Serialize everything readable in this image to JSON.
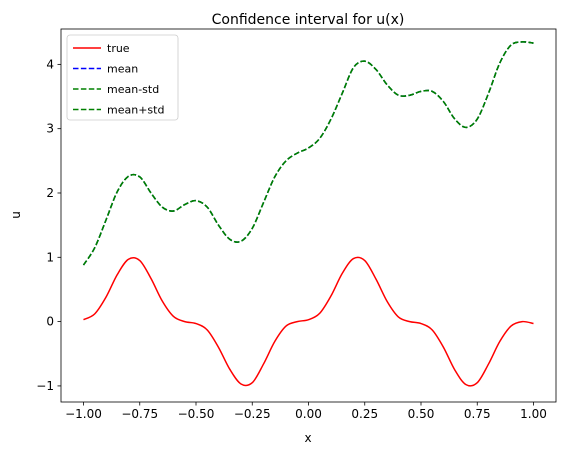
{
  "chart_data": {
    "type": "line",
    "title": "Confidence interval for u(x)",
    "xlabel": "x",
    "ylabel": "u",
    "xlim": [
      -1.1,
      1.1
    ],
    "ylim": [
      -1.25,
      4.55
    ],
    "xticks": [
      -1.0,
      -0.75,
      -0.5,
      -0.25,
      0.0,
      0.25,
      0.5,
      0.75,
      1.0
    ],
    "xtick_labels": [
      "−1.00",
      "−0.75",
      "−0.50",
      "−0.25",
      "0.00",
      "0.25",
      "0.50",
      "0.75",
      "1.00"
    ],
    "yticks": [
      -1,
      0,
      1,
      2,
      3,
      4
    ],
    "ytick_labels": [
      "−1",
      "0",
      "1",
      "2",
      "3",
      "4"
    ],
    "grid": false,
    "legend_position": "top-left",
    "series": [
      {
        "name": "true",
        "color": "#ff0000",
        "dash": "solid",
        "x": [
          -1.0,
          -0.95,
          -0.9,
          -0.85,
          -0.8,
          -0.75,
          -0.7,
          -0.65,
          -0.6,
          -0.55,
          -0.5,
          -0.45,
          -0.4,
          -0.35,
          -0.3,
          -0.25,
          -0.2,
          -0.15,
          -0.1,
          -0.05,
          0.0,
          0.05,
          0.1,
          0.15,
          0.2,
          0.25,
          0.3,
          0.35,
          0.4,
          0.45,
          0.5,
          0.55,
          0.6,
          0.65,
          0.7,
          0.75,
          0.8,
          0.85,
          0.9,
          0.95,
          1.0
        ],
        "y": [
          0.03,
          0.12,
          0.38,
          0.73,
          0.97,
          0.95,
          0.67,
          0.32,
          0.08,
          0.0,
          -0.03,
          -0.13,
          -0.4,
          -0.74,
          -0.97,
          -0.95,
          -0.66,
          -0.31,
          -0.07,
          0.0,
          0.03,
          0.13,
          0.4,
          0.75,
          0.98,
          0.95,
          0.66,
          0.31,
          0.07,
          0.0,
          -0.03,
          -0.13,
          -0.4,
          -0.75,
          -0.98,
          -0.95,
          -0.66,
          -0.31,
          -0.07,
          0.0,
          -0.03
        ]
      },
      {
        "name": "mean",
        "color": "#0000ff",
        "dash": "dashed",
        "x": [
          -1.0,
          -0.95,
          -0.9,
          -0.85,
          -0.8,
          -0.75,
          -0.7,
          -0.65,
          -0.6,
          -0.55,
          -0.5,
          -0.45,
          -0.4,
          -0.35,
          -0.3,
          -0.25,
          -0.2,
          -0.15,
          -0.1,
          -0.05,
          0.0,
          0.05,
          0.1,
          0.15,
          0.2,
          0.25,
          0.3,
          0.35,
          0.4,
          0.45,
          0.5,
          0.55,
          0.6,
          0.65,
          0.7,
          0.75,
          0.8,
          0.85,
          0.9,
          0.95,
          1.0
        ],
        "y": [
          0.88,
          1.15,
          1.58,
          2.02,
          2.26,
          2.25,
          2.0,
          1.78,
          1.72,
          1.82,
          1.88,
          1.78,
          1.5,
          1.28,
          1.25,
          1.45,
          1.85,
          2.25,
          2.5,
          2.62,
          2.7,
          2.85,
          3.15,
          3.55,
          3.95,
          4.05,
          3.92,
          3.68,
          3.52,
          3.52,
          3.58,
          3.58,
          3.42,
          3.15,
          3.02,
          3.15,
          3.55,
          4.02,
          4.3,
          4.35,
          4.33
        ]
      },
      {
        "name": "mean-std",
        "color": "#008000",
        "dash": "dashed",
        "x": [
          -1.0,
          -0.95,
          -0.9,
          -0.85,
          -0.8,
          -0.75,
          -0.7,
          -0.65,
          -0.6,
          -0.55,
          -0.5,
          -0.45,
          -0.4,
          -0.35,
          -0.3,
          -0.25,
          -0.2,
          -0.15,
          -0.1,
          -0.05,
          0.0,
          0.05,
          0.1,
          0.15,
          0.2,
          0.25,
          0.3,
          0.35,
          0.4,
          0.45,
          0.5,
          0.55,
          0.6,
          0.65,
          0.7,
          0.75,
          0.8,
          0.85,
          0.9,
          0.95,
          1.0
        ],
        "y": [
          0.88,
          1.15,
          1.58,
          2.02,
          2.26,
          2.25,
          2.0,
          1.78,
          1.72,
          1.82,
          1.88,
          1.78,
          1.5,
          1.28,
          1.25,
          1.45,
          1.85,
          2.25,
          2.5,
          2.62,
          2.7,
          2.85,
          3.15,
          3.55,
          3.95,
          4.05,
          3.92,
          3.68,
          3.52,
          3.52,
          3.58,
          3.58,
          3.42,
          3.15,
          3.02,
          3.15,
          3.55,
          4.02,
          4.3,
          4.35,
          4.33
        ]
      },
      {
        "name": "mean+std",
        "color": "#008000",
        "dash": "dashed",
        "x": [
          -1.0,
          -0.95,
          -0.9,
          -0.85,
          -0.8,
          -0.75,
          -0.7,
          -0.65,
          -0.6,
          -0.55,
          -0.5,
          -0.45,
          -0.4,
          -0.35,
          -0.3,
          -0.25,
          -0.2,
          -0.15,
          -0.1,
          -0.05,
          0.0,
          0.05,
          0.1,
          0.15,
          0.2,
          0.25,
          0.3,
          0.35,
          0.4,
          0.45,
          0.5,
          0.55,
          0.6,
          0.65,
          0.7,
          0.75,
          0.8,
          0.85,
          0.9,
          0.95,
          1.0
        ],
        "y": [
          0.88,
          1.15,
          1.58,
          2.02,
          2.26,
          2.25,
          2.0,
          1.78,
          1.72,
          1.82,
          1.88,
          1.78,
          1.5,
          1.28,
          1.25,
          1.45,
          1.85,
          2.25,
          2.5,
          2.62,
          2.7,
          2.85,
          3.15,
          3.55,
          3.95,
          4.05,
          3.92,
          3.68,
          3.52,
          3.52,
          3.58,
          3.58,
          3.42,
          3.15,
          3.02,
          3.15,
          3.55,
          4.02,
          4.3,
          4.35,
          4.33
        ]
      }
    ]
  }
}
